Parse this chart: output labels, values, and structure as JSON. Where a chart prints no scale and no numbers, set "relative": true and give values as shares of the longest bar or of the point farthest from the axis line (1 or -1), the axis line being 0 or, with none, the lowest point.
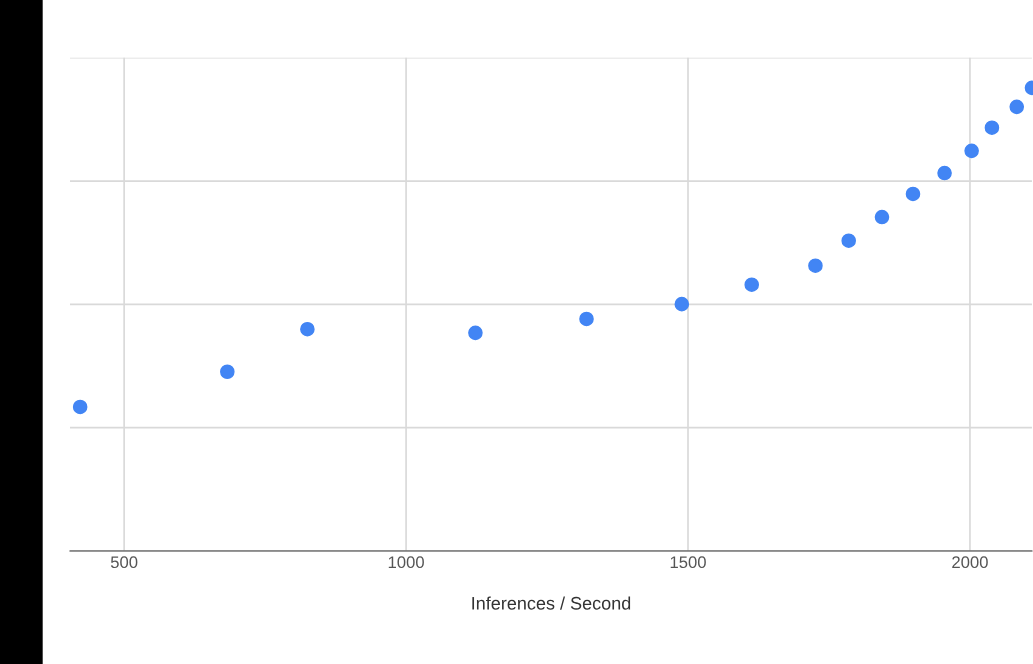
{
  "chart_data": {
    "type": "scatter",
    "relative": true,
    "xlabel": "Inferences / Second",
    "x": [
      422,
      683,
      825,
      1123,
      1320,
      1489,
      1613,
      1726,
      1785,
      1844,
      1899,
      1955,
      2003,
      2039,
      2083,
      2110
    ],
    "series": [
      {
        "color": "#4285f4",
        "values": [
          0.311,
          0.387,
          0.479,
          0.471,
          0.501,
          0.533,
          0.575,
          0.616,
          0.67,
          0.721,
          0.771,
          0.816,
          0.864,
          0.914,
          0.959,
          1.0
        ]
      }
    ],
    "xlim": [
      404,
      2110
    ],
    "xticks": [
      500,
      1000,
      1500,
      2000
    ],
    "grid": true,
    "marker": "circle",
    "tick_labels": "x"
  }
}
